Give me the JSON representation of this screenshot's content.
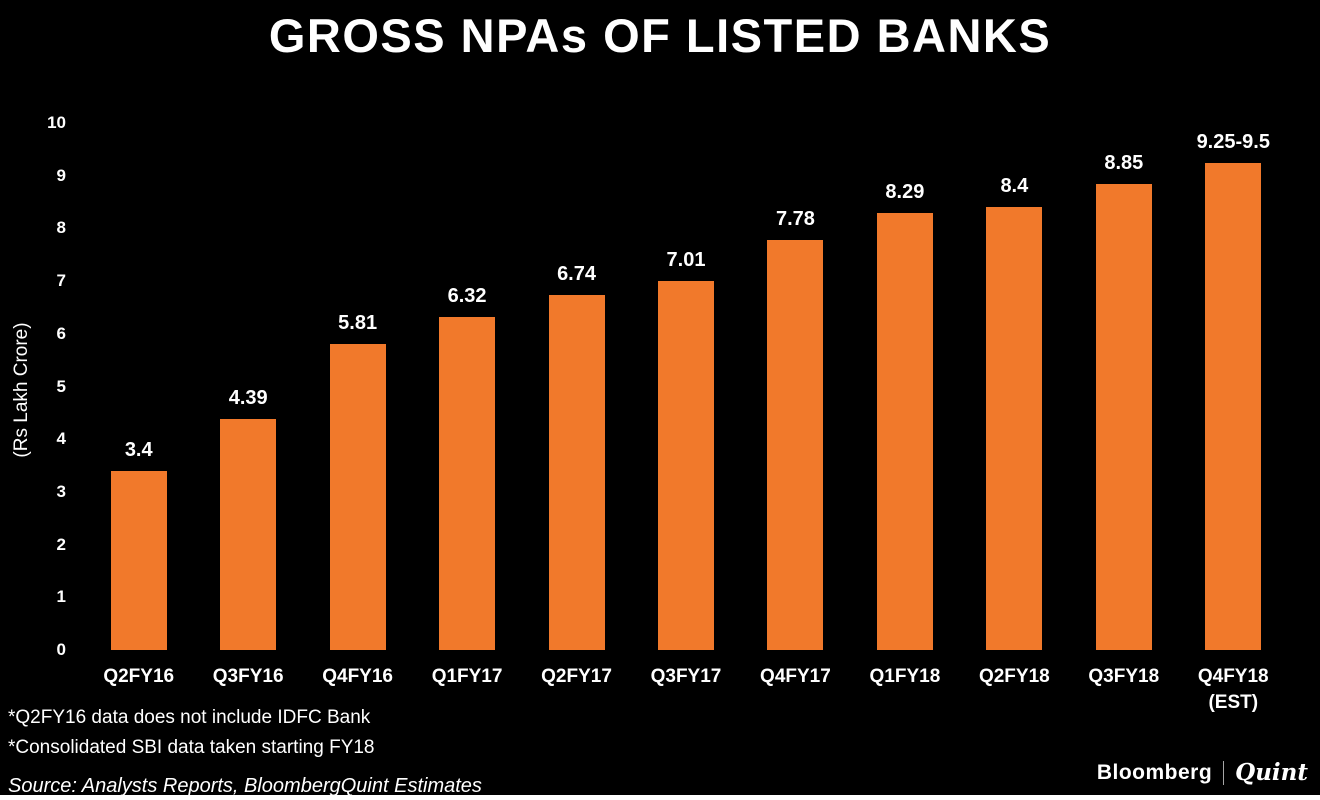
{
  "chart_data": {
    "type": "bar",
    "title": "GROSS NPAs OF LISTED BANKS",
    "xlabel": "",
    "ylabel": "(Rs Lakh Crore)",
    "ylim": [
      0,
      10
    ],
    "yticks": [
      0,
      1,
      2,
      3,
      4,
      5,
      6,
      7,
      8,
      9,
      10
    ],
    "categories": [
      "Q2FY16",
      "Q3FY16",
      "Q4FY16",
      "Q1FY17",
      "Q2FY17",
      "Q3FY17",
      "Q4FY17",
      "Q1FY18",
      "Q2FY18",
      "Q3FY18",
      "Q4FY18\n(EST)"
    ],
    "values": [
      3.4,
      4.39,
      5.81,
      6.32,
      6.74,
      7.01,
      7.78,
      8.29,
      8.4,
      8.85,
      9.25
    ],
    "value_labels": [
      "3.4",
      "4.39",
      "5.81",
      "6.32",
      "6.74",
      "7.01",
      "7.78",
      "8.29",
      "8.4",
      "8.85",
      "9.25-9.5"
    ],
    "bar_color": "#F1792B",
    "grid": false,
    "legend": false
  },
  "footnotes": [
    "*Q2FY16 data does not include IDFC Bank",
    "*Consolidated SBI data taken starting FY18"
  ],
  "source": "Source: Analysts Reports, BloombergQuint Estimates",
  "branding": {
    "bloomberg": "Bloomberg",
    "quint": "Quint"
  },
  "colors": {
    "background": "#000000",
    "text": "#FFFFFF",
    "bar": "#F1792B"
  }
}
